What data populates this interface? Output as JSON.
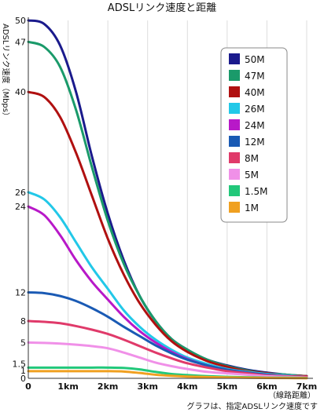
{
  "chart_data": {
    "type": "line",
    "title": "ADSLリンク速度と距離",
    "ylabel": "ADSLリンク速度（Mbps）",
    "xlabel": "（線路距離）",
    "x_unit": "km",
    "note": "グラフは、指定ADSLリンク速度です",
    "xlim": [
      0,
      7
    ],
    "ylim": [
      0,
      50
    ],
    "x_ticks": [
      "0",
      "1km",
      "2km",
      "3km",
      "4km",
      "5km",
      "6km",
      "7km"
    ],
    "y_ticks": [
      "0",
      "1",
      "1.5",
      "5",
      "8",
      "12",
      "24",
      "26",
      "40",
      "47",
      "50"
    ],
    "legend_position": "top-right",
    "series": [
      {
        "name": "50M",
        "color": "#1a1a8c",
        "start": 50,
        "x": [
          0,
          0.4,
          0.8,
          1.2,
          1.6,
          2.0,
          2.4,
          2.8,
          3.2,
          3.6,
          4.0,
          4.5,
          5.0,
          5.5,
          6.0,
          6.5,
          7.0
        ],
        "y": [
          50,
          49.5,
          46.5,
          40,
          31,
          23,
          16.5,
          11.5,
          8,
          5.5,
          4,
          2.6,
          1.8,
          1.2,
          0.8,
          0.5,
          0.3
        ]
      },
      {
        "name": "47M",
        "color": "#1a9a6a",
        "start": 47,
        "x": [
          0,
          0.4,
          0.8,
          1.2,
          1.6,
          2.0,
          2.4,
          2.8,
          3.2,
          3.6,
          4.0,
          4.5,
          5.0,
          5.5,
          6.0,
          6.5,
          7.0
        ],
        "y": [
          47,
          46.3,
          43.5,
          37.5,
          29.5,
          22,
          16,
          11.5,
          8,
          5.5,
          4,
          2.6,
          1.7,
          1.1,
          0.7,
          0.5,
          0.3
        ]
      },
      {
        "name": "40M",
        "color": "#b01010",
        "start": 40,
        "x": [
          0,
          0.4,
          0.8,
          1.2,
          1.6,
          2.0,
          2.4,
          2.8,
          3.2,
          3.6,
          4.0,
          4.5,
          5.0,
          5.5,
          6.0,
          6.5,
          7.0
        ],
        "y": [
          40,
          39.3,
          36.5,
          31.5,
          25.5,
          19.5,
          14.5,
          10.5,
          7.5,
          5.2,
          3.7,
          2.4,
          1.6,
          1.0,
          0.7,
          0.4,
          0.3
        ]
      },
      {
        "name": "26M",
        "color": "#22c8e8",
        "start": 26,
        "x": [
          0,
          0.4,
          0.8,
          1.2,
          1.6,
          2.0,
          2.4,
          2.8,
          3.2,
          3.6,
          4.0,
          4.5,
          5.0,
          5.5,
          6.0,
          6.5,
          7.0
        ],
        "y": [
          26,
          25,
          22.5,
          19,
          15.5,
          12.5,
          9.5,
          7.2,
          5.4,
          4,
          2.9,
          2.0,
          1.3,
          0.9,
          0.6,
          0.4,
          0.2
        ]
      },
      {
        "name": "24M",
        "color": "#b818c8",
        "start": 24,
        "x": [
          0,
          0.4,
          0.8,
          1.2,
          1.6,
          2.0,
          2.4,
          2.8,
          3.2,
          3.6,
          4.0,
          4.5,
          5.0,
          5.5,
          6.0,
          6.5,
          7.0
        ],
        "y": [
          24,
          22.8,
          20,
          16.5,
          13.5,
          11,
          8.6,
          6.6,
          5,
          3.7,
          2.7,
          1.8,
          1.2,
          0.8,
          0.5,
          0.3,
          0.2
        ]
      },
      {
        "name": "12M",
        "color": "#1a5ab4",
        "start": 12,
        "x": [
          0,
          0.4,
          0.8,
          1.2,
          1.6,
          2.0,
          2.4,
          2.8,
          3.2,
          3.6,
          4.0,
          4.5,
          5.0,
          5.5,
          6.0,
          6.5,
          7.0
        ],
        "y": [
          12,
          11.9,
          11.5,
          10.8,
          9.8,
          8.6,
          7.2,
          5.9,
          4.6,
          3.5,
          2.6,
          1.8,
          1.2,
          0.8,
          0.5,
          0.3,
          0.2
        ]
      },
      {
        "name": "8M",
        "color": "#e03a6a",
        "start": 8,
        "x": [
          0,
          0.4,
          0.8,
          1.2,
          1.6,
          2.0,
          2.4,
          2.8,
          3.2,
          3.6,
          4.0,
          4.5,
          5.0,
          5.5,
          6.0,
          6.5,
          7.0
        ],
        "y": [
          8,
          7.9,
          7.7,
          7.3,
          6.8,
          6.2,
          5.4,
          4.5,
          3.6,
          2.8,
          2.1,
          1.5,
          1.0,
          0.7,
          0.4,
          0.3,
          0.2
        ]
      },
      {
        "name": "5M",
        "color": "#f090e8",
        "start": 5,
        "x": [
          0,
          0.4,
          0.8,
          1.2,
          1.6,
          2.0,
          2.4,
          2.8,
          3.2,
          3.6,
          4.0,
          4.5,
          5.0,
          5.5,
          6.0,
          6.5,
          7.0
        ],
        "y": [
          5,
          4.95,
          4.85,
          4.7,
          4.5,
          4.2,
          3.6,
          2.9,
          2.2,
          1.7,
          1.3,
          0.9,
          0.7,
          0.5,
          0.3,
          0.2,
          0.1
        ]
      },
      {
        "name": "1.5M",
        "color": "#22c87a",
        "start": 1.5,
        "x": [
          0,
          0.4,
          0.8,
          1.2,
          1.6,
          2.0,
          2.4,
          2.8,
          3.2,
          3.6,
          4.0,
          4.5,
          5.0,
          5.5,
          6.0,
          6.5,
          7.0
        ],
        "y": [
          1.5,
          1.5,
          1.5,
          1.5,
          1.5,
          1.5,
          1.45,
          1.25,
          0.9,
          0.6,
          0.45,
          0.3,
          0.2,
          0.15,
          0.1,
          0.1,
          0.05
        ]
      },
      {
        "name": "1M",
        "color": "#f0a020",
        "start": 1,
        "x": [
          0,
          0.4,
          0.8,
          1.2,
          1.6,
          2.0,
          2.4,
          2.8,
          3.2,
          3.6,
          4.0,
          4.5,
          5.0,
          5.5,
          6.0,
          6.5,
          7.0
        ],
        "y": [
          1,
          1,
          1,
          1,
          1,
          1,
          0.95,
          0.75,
          0.5,
          0.35,
          0.25,
          0.18,
          0.12,
          0.08,
          0.05,
          0.04,
          0.02
        ]
      }
    ]
  }
}
